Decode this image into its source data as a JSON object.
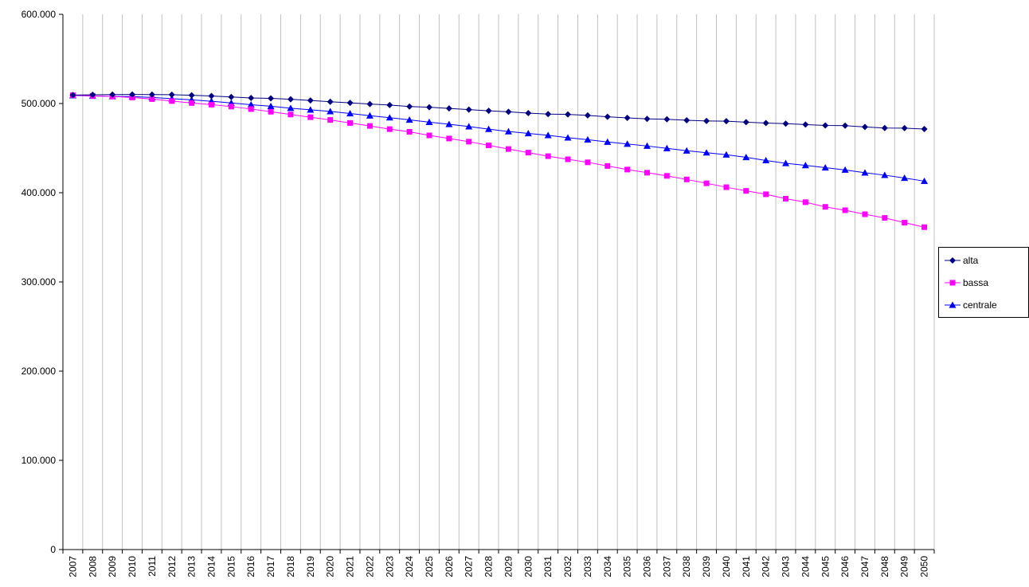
{
  "chart_data": {
    "type": "line",
    "title": "",
    "xlabel": "",
    "ylabel": "",
    "ylim": [
      0,
      600000
    ],
    "y_ticks": [
      0,
      100000,
      200000,
      300000,
      400000,
      500000,
      600000
    ],
    "y_tick_labels": [
      "0",
      "100.000",
      "200.000",
      "300.000",
      "400.000",
      "500.000",
      "600.000"
    ],
    "grid": "vertical",
    "legend_position": "right",
    "categories": [
      "2007",
      "2008",
      "2009",
      "2010",
      "2011",
      "2012",
      "2013",
      "2014",
      "2015",
      "2016",
      "2017",
      "2018",
      "2019",
      "2020",
      "2021",
      "2022",
      "2023",
      "2024",
      "2025",
      "2026",
      "2027",
      "2028",
      "2029",
      "2030",
      "2031",
      "2032",
      "2033",
      "2034",
      "2035",
      "2036",
      "2037",
      "2038",
      "2039",
      "2040",
      "2041",
      "2042",
      "2043",
      "2044",
      "2045",
      "2046",
      "2047",
      "2048",
      "2049",
      "2050"
    ],
    "series": [
      {
        "name": "alta",
        "color": "#000080",
        "marker": "diamond",
        "values": [
          509500,
          509800,
          510000,
          510200,
          510100,
          509900,
          509300,
          508500,
          507400,
          506300,
          505800,
          504800,
          503500,
          502000,
          500800,
          499400,
          498300,
          496700,
          495900,
          494500,
          493200,
          491900,
          490700,
          489300,
          488200,
          487800,
          486700,
          485200,
          483900,
          482800,
          482400,
          481300,
          480500,
          480200,
          479100,
          478100,
          477400,
          476400,
          475500,
          475200,
          473800,
          472600,
          472400,
          471400
        ]
      },
      {
        "name": "bassa",
        "color": "#FF00FF",
        "marker": "square",
        "values": [
          509300,
          508600,
          507900,
          506800,
          505000,
          502800,
          500600,
          498800,
          496600,
          493800,
          490800,
          487700,
          484700,
          481600,
          478200,
          474900,
          471300,
          468300,
          464300,
          460800,
          457300,
          453100,
          449000,
          445000,
          441000,
          437500,
          434100,
          430000,
          426000,
          422500,
          418900,
          414900,
          410600,
          406200,
          402100,
          398300,
          393300,
          389400,
          384200,
          380400,
          375900,
          371800,
          366500,
          361400
        ]
      },
      {
        "name": "centrale",
        "color": "#0000FF",
        "marker": "triangle",
        "values": [
          509000,
          508500,
          508000,
          507800,
          506800,
          505500,
          504100,
          502600,
          500700,
          498700,
          497000,
          494800,
          493000,
          491200,
          488800,
          486400,
          484200,
          481700,
          479100,
          476800,
          474200,
          471300,
          468600,
          466500,
          464400,
          461700,
          459500,
          456900,
          454700,
          452400,
          449800,
          447100,
          444900,
          442600,
          439700,
          436200,
          433000,
          430700,
          428100,
          425600,
          422400,
          419700,
          416500,
          413000
        ]
      }
    ]
  }
}
